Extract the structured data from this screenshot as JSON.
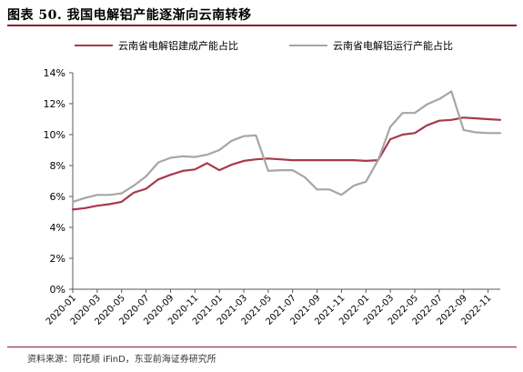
{
  "figure": {
    "title": "图表 50. 我国电解铝产能逐渐向云南转移",
    "source": "资料来源：同花顺 iFinD，东亚前海证券研究所"
  },
  "chart_data": {
    "type": "line",
    "title": "",
    "xlabel": "",
    "ylabel": "",
    "ylim": [
      0,
      14
    ],
    "yticks": [
      "0%",
      "2%",
      "4%",
      "6%",
      "8%",
      "10%",
      "12%",
      "14%"
    ],
    "xtick_labels": [
      "2020-01",
      "2020-03",
      "2020-05",
      "2020-07",
      "2020-09",
      "2020-11",
      "2021-01",
      "2021-03",
      "2021-05",
      "2021-07",
      "2021-09",
      "2021-11",
      "2022-01",
      "2022-03",
      "2022-05",
      "2022-07",
      "2022-09",
      "2022-11"
    ],
    "x": [
      "2020-01",
      "2020-02",
      "2020-03",
      "2020-04",
      "2020-05",
      "2020-06",
      "2020-07",
      "2020-08",
      "2020-09",
      "2020-10",
      "2020-11",
      "2020-12",
      "2021-01",
      "2021-02",
      "2021-03",
      "2021-04",
      "2021-05",
      "2021-06",
      "2021-07",
      "2021-08",
      "2021-09",
      "2021-10",
      "2021-11",
      "2021-12",
      "2022-01",
      "2022-02",
      "2022-03",
      "2022-04",
      "2022-05",
      "2022-06",
      "2022-07",
      "2022-08",
      "2022-09",
      "2022-10",
      "2022-11",
      "2022-12"
    ],
    "grid": false,
    "legend_position": "top",
    "series": [
      {
        "name": "云南省电解铝建成产能占比",
        "color": "#a8394b",
        "values": [
          5.15,
          5.25,
          5.4,
          5.5,
          5.65,
          6.25,
          6.5,
          7.1,
          7.4,
          7.65,
          7.75,
          8.15,
          7.7,
          8.05,
          8.3,
          8.4,
          8.45,
          8.4,
          8.35,
          8.35,
          8.35,
          8.35,
          8.35,
          8.35,
          8.3,
          8.35,
          9.7,
          10.0,
          10.1,
          10.6,
          10.9,
          10.95,
          11.1,
          11.05,
          11.0,
          10.95
        ]
      },
      {
        "name": "云南省电解铝运行产能占比",
        "color": "#a6a6a6",
        "values": [
          5.65,
          5.9,
          6.1,
          6.1,
          6.2,
          6.7,
          7.3,
          8.2,
          8.5,
          8.6,
          8.55,
          8.7,
          9.0,
          9.6,
          9.9,
          9.95,
          7.65,
          7.7,
          7.7,
          7.25,
          6.45,
          6.45,
          6.1,
          6.7,
          6.95,
          8.35,
          10.5,
          11.4,
          11.4,
          11.95,
          12.3,
          12.8,
          10.3,
          10.15,
          10.1,
          10.1
        ]
      }
    ]
  }
}
